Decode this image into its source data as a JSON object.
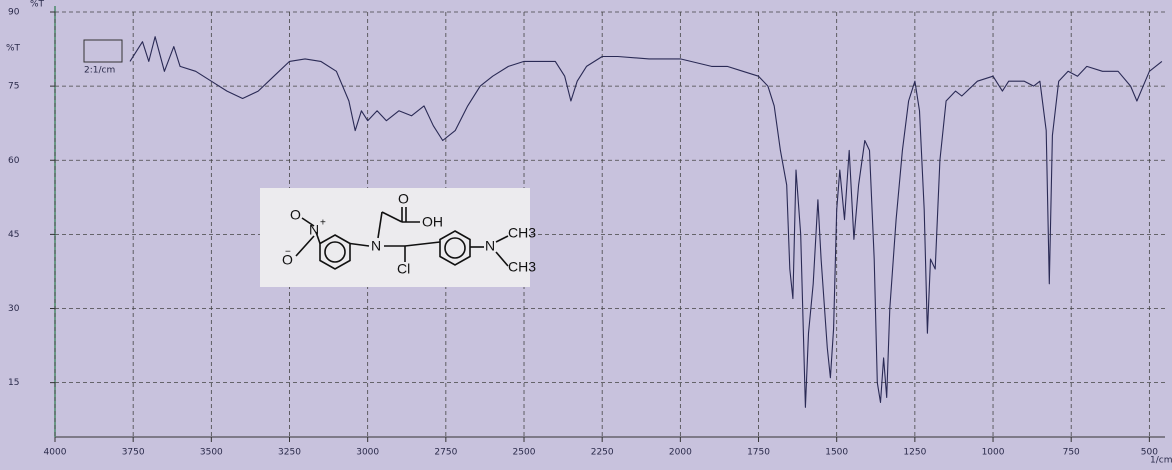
{
  "chart_data": {
    "type": "line",
    "y_labels": [
      "%T",
      "%T"
    ],
    "x_label": "1/cm",
    "resolution_label": "2:1/cm",
    "x": [
      3760,
      3720,
      3700,
      3680,
      3650,
      3620,
      3600,
      3550,
      3500,
      3450,
      3400,
      3350,
      3300,
      3250,
      3200,
      3150,
      3100,
      3060,
      3040,
      3020,
      3000,
      2970,
      2940,
      2900,
      2860,
      2820,
      2790,
      2760,
      2720,
      2680,
      2640,
      2600,
      2550,
      2500,
      2450,
      2400,
      2370,
      2350,
      2330,
      2300,
      2250,
      2200,
      2100,
      2000,
      1900,
      1850,
      1800,
      1750,
      1720,
      1700,
      1680,
      1660,
      1650,
      1640,
      1630,
      1615,
      1600,
      1590,
      1575,
      1560,
      1550,
      1530,
      1520,
      1510,
      1500,
      1490,
      1475,
      1460,
      1445,
      1430,
      1410,
      1395,
      1380,
      1370,
      1360,
      1350,
      1340,
      1330,
      1310,
      1290,
      1270,
      1250,
      1235,
      1220,
      1210,
      1200,
      1185,
      1170,
      1150,
      1120,
      1100,
      1050,
      1000,
      970,
      950,
      900,
      870,
      850,
      830,
      820,
      810,
      790,
      760,
      730,
      700,
      650,
      600,
      560,
      540,
      500,
      460
    ],
    "values": [
      80,
      84,
      80,
      85,
      78,
      83,
      79,
      78,
      76,
      74,
      72.5,
      74,
      77,
      80,
      80.5,
      80,
      78,
      72,
      66,
      70,
      68,
      70,
      68,
      70,
      69,
      71,
      67,
      64,
      66,
      71,
      75,
      77,
      79,
      80,
      80,
      80,
      77,
      72,
      76,
      79,
      81,
      81,
      80.5,
      80.5,
      79,
      79,
      78,
      77,
      75,
      71,
      62,
      55,
      38,
      32,
      58,
      45,
      10,
      25,
      35,
      52,
      40,
      22,
      16,
      26,
      50,
      58,
      48,
      62,
      44,
      55,
      64,
      62,
      40,
      15,
      11,
      20,
      12,
      30,
      48,
      62,
      72,
      76,
      70,
      50,
      25,
      40,
      38,
      60,
      72,
      74,
      73,
      76,
      77,
      74,
      76,
      76,
      75,
      76,
      66,
      35,
      65,
      76,
      78,
      77,
      79,
      78,
      78,
      75,
      72,
      78,
      80
    ],
    "color": "#2a2a55",
    "xlim": [
      4000,
      450
    ],
    "ylim": [
      4,
      90
    ],
    "xticks": [
      4000,
      3750,
      3500,
      3250,
      3000,
      2750,
      2500,
      2250,
      2000,
      1750,
      1500,
      1250,
      1000,
      750,
      500
    ],
    "yticks": [
      15,
      30,
      45,
      60,
      75,
      90
    ],
    "grid": true,
    "structure_labels": [
      "O",
      "N",
      "+",
      "O",
      "−",
      "N",
      "O",
      "OH",
      "Cl",
      "N",
      "CH3",
      "CH3"
    ]
  }
}
